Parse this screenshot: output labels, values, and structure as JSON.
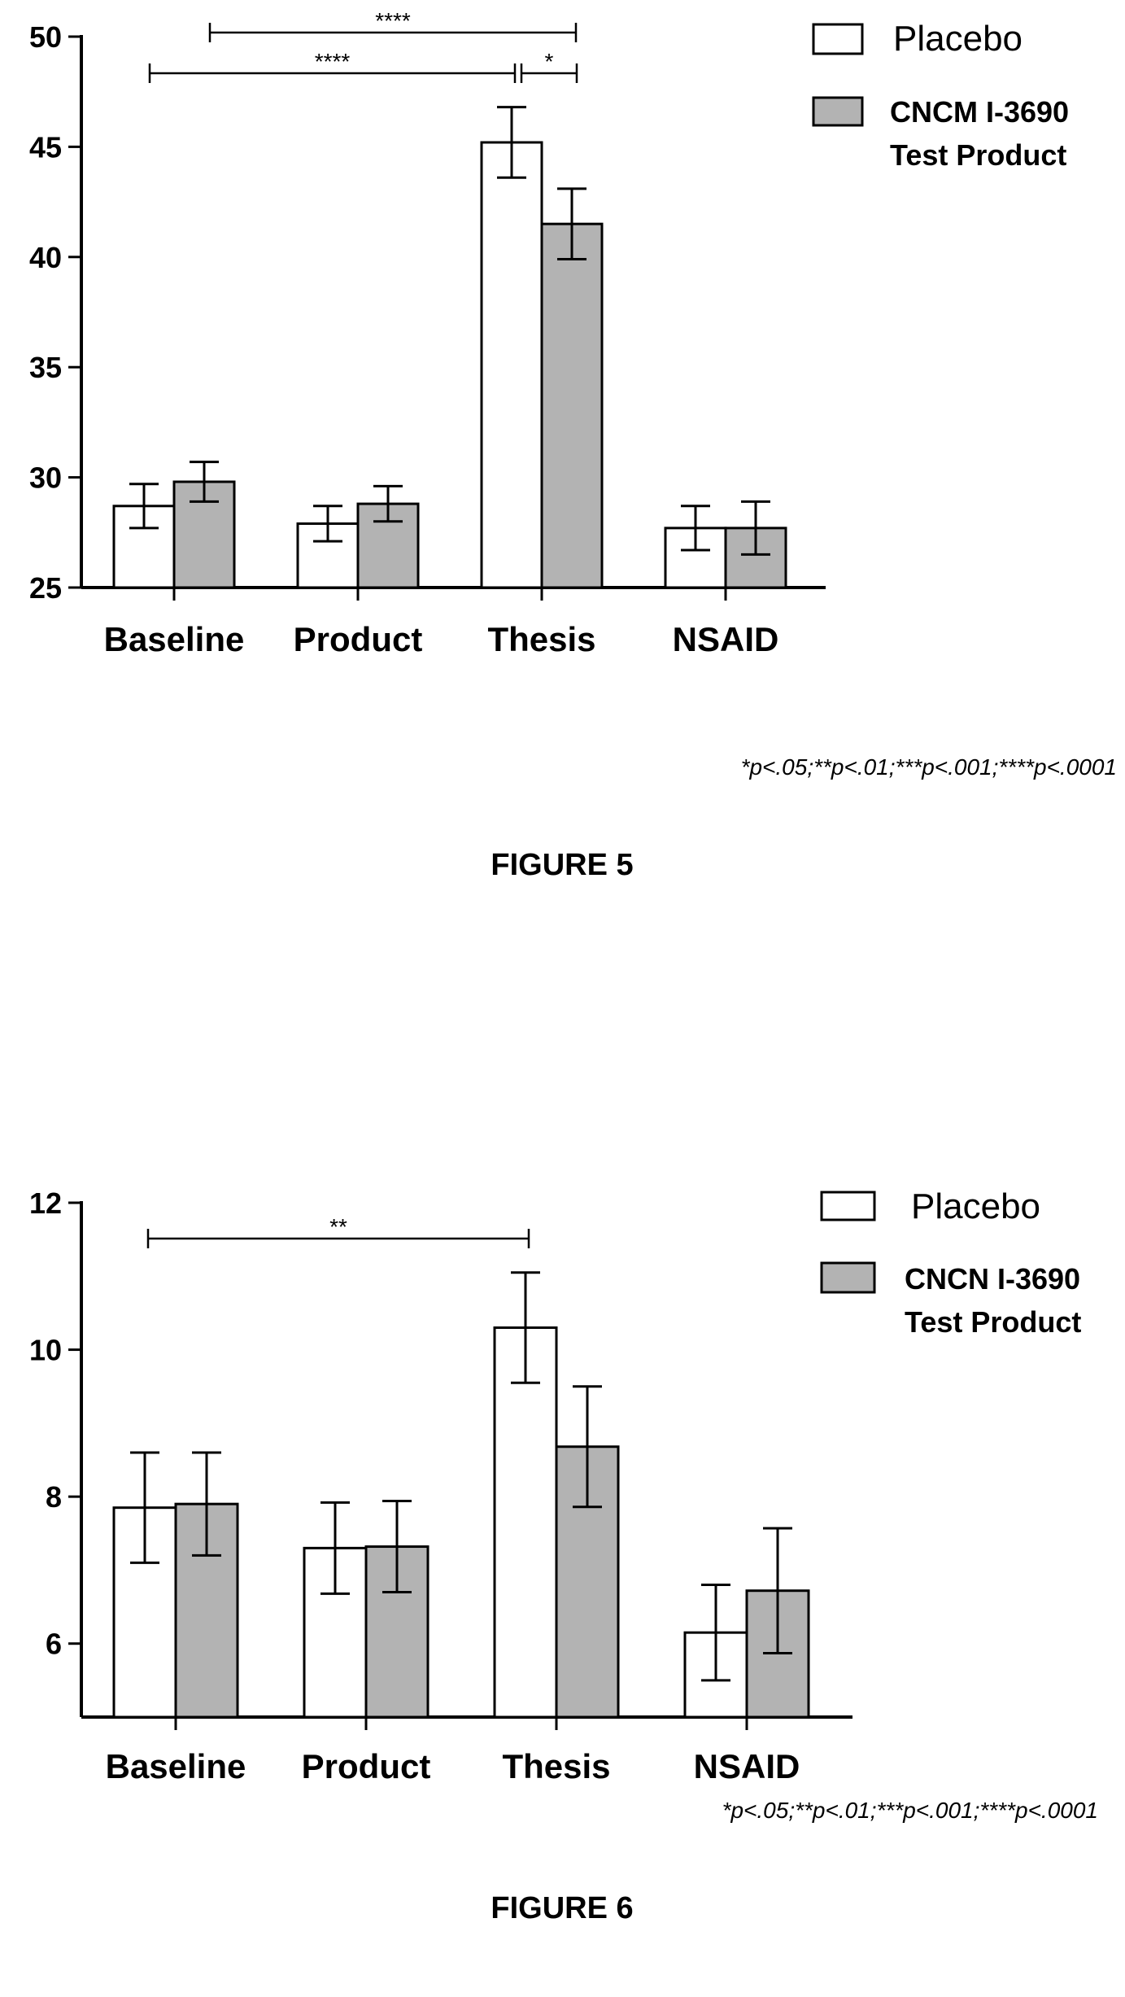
{
  "chart_data": [
    {
      "type": "bar",
      "categories": [
        "Baseline",
        "Product",
        "Thesis",
        "NSAID"
      ],
      "series": [
        {
          "name": "Placebo",
          "values": [
            28.7,
            27.9,
            45.2,
            27.7
          ],
          "errors": [
            1.0,
            0.8,
            1.6,
            1.0
          ],
          "color": "#ffffff"
        },
        {
          "name": "CNCM I-3690 Test Product",
          "values": [
            29.8,
            28.8,
            41.5,
            27.7
          ],
          "errors": [
            0.9,
            0.8,
            1.6,
            1.2
          ],
          "color": "#b3b3b3"
        }
      ],
      "ylim": [
        25,
        50
      ],
      "yticks": [
        25,
        30,
        35,
        40,
        45,
        50
      ],
      "legend": {
        "position": "top-right",
        "placebo_label": "Placebo",
        "test_label_line1": "CNCM I-3690",
        "test_label_line2": "Test Product"
      },
      "significance": [
        {
          "from": "Baseline Test Product",
          "to": "Thesis Test Product",
          "label": "****"
        },
        {
          "from": "Baseline Placebo",
          "to": "Thesis Placebo",
          "label": "****"
        },
        {
          "from": "Thesis Placebo",
          "to": "Thesis Test Product",
          "label": "*"
        }
      ],
      "footnote": "*p<.05;**p<.01;***p<.001;****p<.0001",
      "figure_label": "FIGURE 5",
      "title": "",
      "xlabel": "",
      "ylabel": ""
    },
    {
      "type": "bar",
      "categories": [
        "Baseline",
        "Product",
        "Thesis",
        "NSAID"
      ],
      "series": [
        {
          "name": "Placebo",
          "values": [
            7.85,
            7.3,
            10.3,
            6.15
          ],
          "errors": [
            0.75,
            0.62,
            0.75,
            0.65
          ],
          "color": "#ffffff"
        },
        {
          "name": "CNCN I-3690 Test Product",
          "values": [
            7.9,
            7.32,
            8.68,
            6.72
          ],
          "errors": [
            0.7,
            0.62,
            0.82,
            0.85
          ],
          "color": "#b3b3b3"
        }
      ],
      "ylim": [
        5,
        12
      ],
      "yticks": [
        6,
        8,
        10,
        12
      ],
      "legend": {
        "position": "top-right",
        "placebo_label": "Placebo",
        "test_label_line1": "CNCN I-3690",
        "test_label_line2": "Test Product"
      },
      "significance": [
        {
          "from": "Baseline Placebo",
          "to": "Thesis Placebo",
          "label": "**"
        }
      ],
      "footnote": "*p<.05;**p<.01;***p<.001;****p<.0001",
      "figure_label": "FIGURE 6",
      "title": "",
      "xlabel": "",
      "ylabel": ""
    }
  ],
  "colors": {
    "placebo": "#ffffff",
    "test_product": "#b3b3b3",
    "ink": "#000000"
  }
}
